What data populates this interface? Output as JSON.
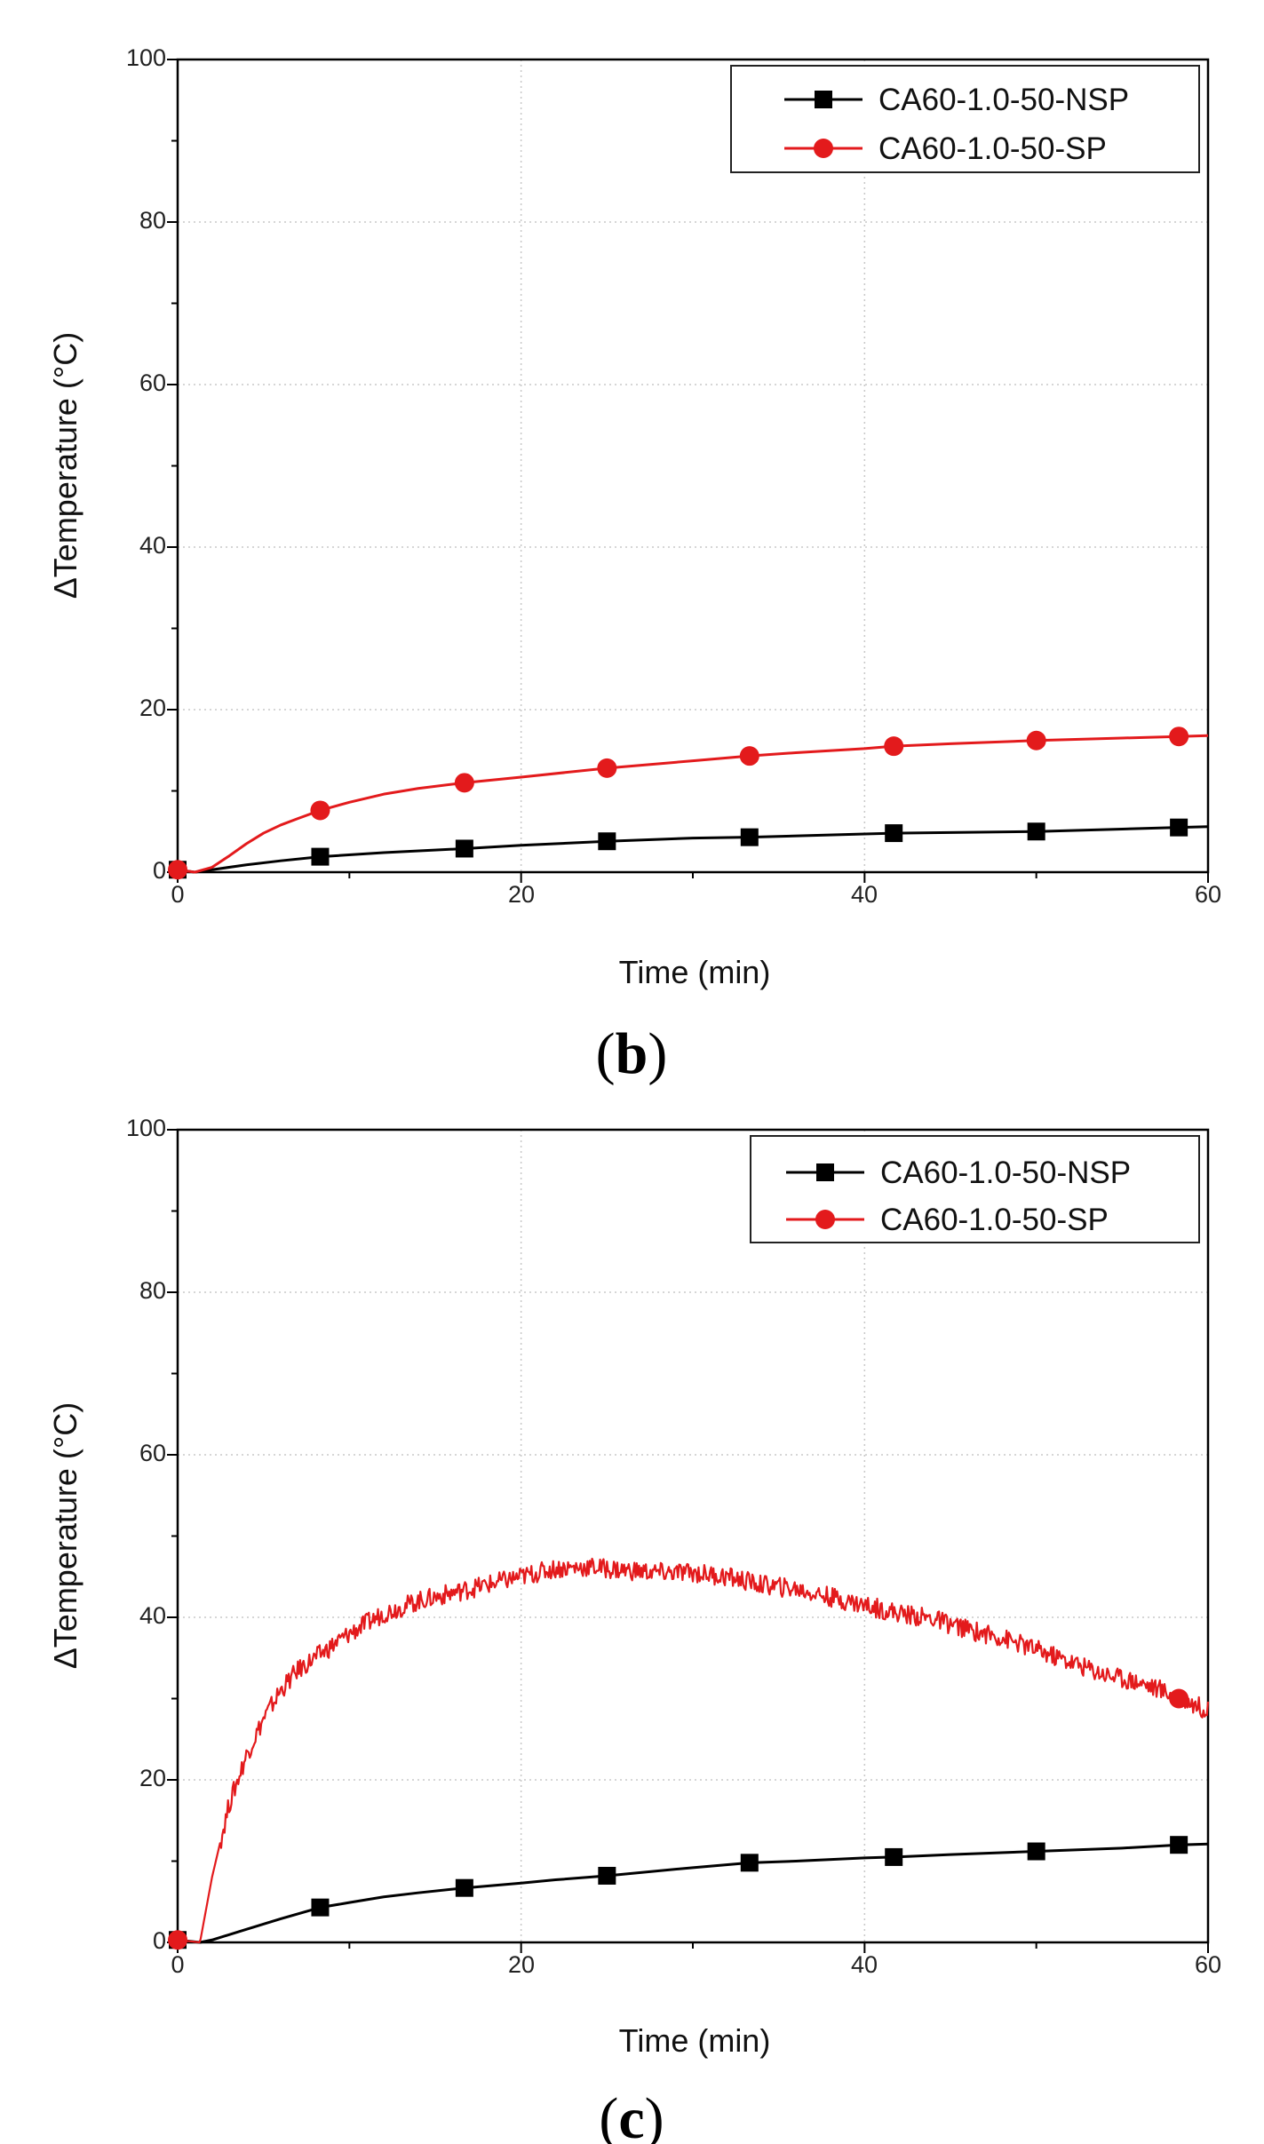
{
  "chart_data": [
    {
      "type": "line",
      "panel_label": "b",
      "xlabel": "Time (min)",
      "ylabel": "ΔTemperature (°C)",
      "xlim": [
        0,
        60
      ],
      "ylim": [
        0,
        100
      ],
      "xticks": [
        0,
        20,
        40,
        60
      ],
      "yticks": [
        0,
        20,
        40,
        60,
        80,
        100
      ],
      "grid": true,
      "legend_position": "top-right",
      "series": [
        {
          "name": "CA60-1.0-50-NSP",
          "color": "#000000",
          "marker": "square",
          "noise": 0,
          "line_points": [
            [
              0,
              0.3
            ],
            [
              1,
              0
            ],
            [
              2,
              0.3
            ],
            [
              4,
              0.9
            ],
            [
              6,
              1.4
            ],
            [
              8.3,
              1.9
            ],
            [
              12,
              2.4
            ],
            [
              16.7,
              2.9
            ],
            [
              20,
              3.3
            ],
            [
              25,
              3.8
            ],
            [
              30,
              4.2
            ],
            [
              33.3,
              4.3
            ],
            [
              40,
              4.7
            ],
            [
              41.7,
              4.8
            ],
            [
              50,
              5.0
            ],
            [
              55,
              5.3
            ],
            [
              58.3,
              5.5
            ],
            [
              60,
              5.6
            ]
          ],
          "markers": [
            [
              0,
              0.3
            ],
            [
              8.3,
              1.9
            ],
            [
              16.7,
              2.9
            ],
            [
              25,
              3.8
            ],
            [
              33.3,
              4.3
            ],
            [
              41.7,
              4.8
            ],
            [
              50,
              5.0
            ],
            [
              58.3,
              5.5
            ]
          ]
        },
        {
          "name": "CA60-1.0-50-SP",
          "color": "#e31a1c",
          "marker": "circle",
          "noise": 0,
          "line_points": [
            [
              0,
              0.3
            ],
            [
              1,
              0
            ],
            [
              2,
              0.6
            ],
            [
              3,
              2.0
            ],
            [
              4,
              3.5
            ],
            [
              5,
              4.8
            ],
            [
              6,
              5.8
            ],
            [
              7,
              6.6
            ],
            [
              8.3,
              7.6
            ],
            [
              10,
              8.6
            ],
            [
              12,
              9.6
            ],
            [
              14,
              10.3
            ],
            [
              16.7,
              11.0
            ],
            [
              20,
              11.7
            ],
            [
              25,
              12.8
            ],
            [
              30,
              13.7
            ],
            [
              33.3,
              14.3
            ],
            [
              36,
              14.7
            ],
            [
              40,
              15.2
            ],
            [
              41.7,
              15.5
            ],
            [
              45,
              15.8
            ],
            [
              50,
              16.2
            ],
            [
              55,
              16.5
            ],
            [
              58.3,
              16.7
            ],
            [
              60,
              16.8
            ]
          ],
          "markers": [
            [
              0,
              0.3
            ],
            [
              8.3,
              7.6
            ],
            [
              16.7,
              11.0
            ],
            [
              25,
              12.8
            ],
            [
              33.3,
              14.3
            ],
            [
              41.7,
              15.5
            ],
            [
              50,
              16.2
            ],
            [
              58.3,
              16.7
            ]
          ]
        }
      ]
    },
    {
      "type": "line",
      "panel_label": "c",
      "xlabel": "Time (min)",
      "ylabel": "ΔTemperature (°C)",
      "xlim": [
        0,
        60
      ],
      "ylim": [
        0,
        100
      ],
      "xticks": [
        0,
        20,
        40,
        60
      ],
      "yticks": [
        0,
        20,
        40,
        60,
        80,
        100
      ],
      "grid": true,
      "legend_position": "top-right",
      "series": [
        {
          "name": "CA60-1.0-50-NSP",
          "color": "#000000",
          "marker": "square",
          "noise": 0,
          "line_points": [
            [
              0,
              0.3
            ],
            [
              1.3,
              0
            ],
            [
              2,
              0.3
            ],
            [
              4,
              1.6
            ],
            [
              6,
              2.9
            ],
            [
              8.3,
              4.3
            ],
            [
              10,
              4.9
            ],
            [
              12,
              5.6
            ],
            [
              14,
              6.1
            ],
            [
              16.7,
              6.7
            ],
            [
              20,
              7.3
            ],
            [
              22,
              7.7
            ],
            [
              25,
              8.2
            ],
            [
              30,
              9.2
            ],
            [
              33.3,
              9.8
            ],
            [
              36,
              10.0
            ],
            [
              40,
              10.4
            ],
            [
              41.7,
              10.5
            ],
            [
              45,
              10.8
            ],
            [
              50,
              11.2
            ],
            [
              55,
              11.6
            ],
            [
              58.3,
              12.0
            ],
            [
              60,
              12.1
            ]
          ],
          "markers": [
            [
              0,
              0.3
            ],
            [
              8.3,
              4.3
            ],
            [
              16.7,
              6.7
            ],
            [
              25,
              8.2
            ],
            [
              33.3,
              9.8
            ],
            [
              41.7,
              10.5
            ],
            [
              50,
              11.2
            ],
            [
              58.3,
              12.0
            ]
          ]
        },
        {
          "name": "CA60-1.0-50-SP",
          "color": "#e31a1c",
          "marker": "circle",
          "noise": 1.2,
          "line_points": [
            [
              0,
              0.3
            ],
            [
              1.3,
              0
            ],
            [
              2,
              8
            ],
            [
              3,
              17
            ],
            [
              4,
              23
            ],
            [
              5,
              27.5
            ],
            [
              6,
              31
            ],
            [
              7,
              33.5
            ],
            [
              8,
              35
            ],
            [
              9,
              36.5
            ],
            [
              10,
              38
            ],
            [
              12,
              40.5
            ],
            [
              14,
              42
            ],
            [
              16,
              43
            ],
            [
              18,
              44
            ],
            [
              20,
              45
            ],
            [
              22,
              46
            ],
            [
              24,
              46.2
            ],
            [
              26,
              45.8
            ],
            [
              28,
              45.5
            ],
            [
              30,
              45.5
            ],
            [
              32,
              45
            ],
            [
              34,
              44
            ],
            [
              36,
              43.5
            ],
            [
              38,
              42.5
            ],
            [
              40,
              41.5
            ],
            [
              42,
              40.5
            ],
            [
              44,
              39.8
            ],
            [
              46,
              38.5
            ],
            [
              48,
              37.5
            ],
            [
              50,
              36
            ],
            [
              52,
              34.5
            ],
            [
              54,
              33
            ],
            [
              56,
              32
            ],
            [
              58,
              30.5
            ],
            [
              60,
              28.5
            ]
          ],
          "markers": [
            [
              0,
              0.3
            ],
            [
              58.3,
              30.0
            ]
          ]
        }
      ]
    }
  ]
}
